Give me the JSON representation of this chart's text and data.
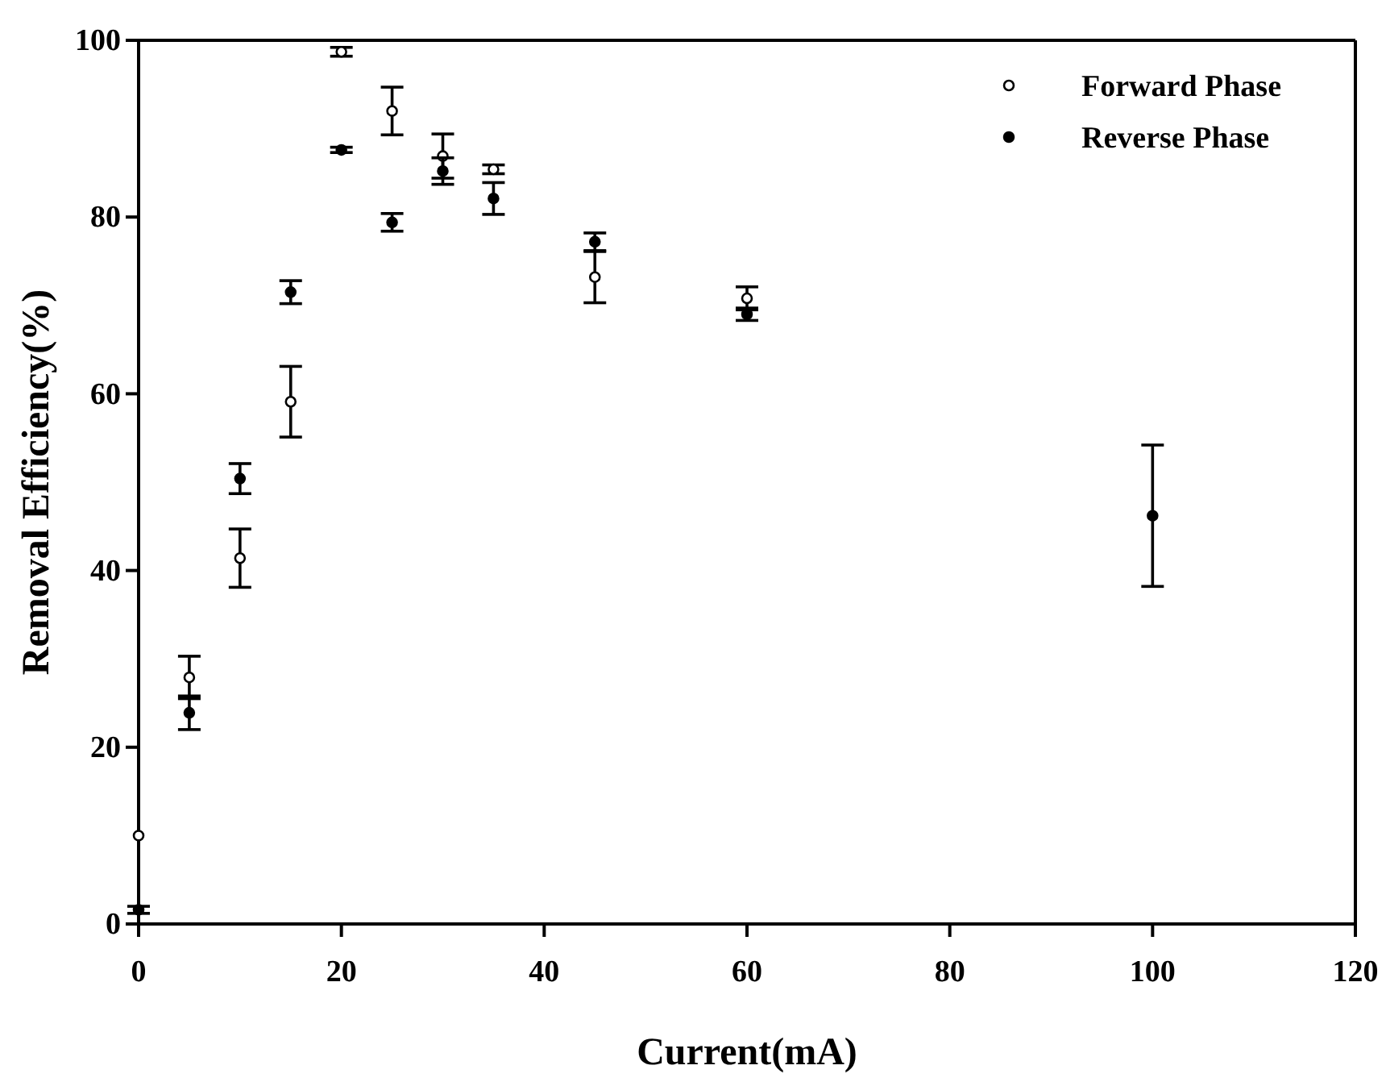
{
  "chart_data": {
    "type": "scatter",
    "xlabel": "Current(mA)",
    "ylabel": "Removal Efficiency(%)",
    "xlim": [
      0,
      120
    ],
    "xticks": [
      0,
      20,
      40,
      60,
      80,
      100,
      120
    ],
    "ylim": [
      0,
      100
    ],
    "yticks": [
      0,
      20,
      40,
      60,
      80,
      100
    ],
    "grid": false,
    "legend": "top right",
    "marker": "circle",
    "series": [
      {
        "name": "Forward Phase",
        "color": "#000000",
        "x": [
          0,
          5,
          10,
          15,
          20,
          25,
          30,
          35,
          45,
          60
        ],
        "values": [
          10,
          27.9,
          41.4,
          59.1,
          98.7,
          92,
          86.9,
          85.4,
          73.2,
          70.8
        ],
        "errors": [
          null,
          2.4,
          3.3,
          4,
          0.5,
          2.7,
          2.5,
          0.5,
          2.9,
          1.3
        ]
      },
      {
        "name": "Reverse Phase",
        "color": "#000000",
        "x": [
          0,
          5,
          10,
          15,
          20,
          25,
          30,
          35,
          45,
          60,
          100
        ],
        "values": [
          1.6,
          23.9,
          50.4,
          71.5,
          87.6,
          79.4,
          85.2,
          82.1,
          77.2,
          69,
          46.2
        ],
        "errors": [
          0.4,
          1.9,
          1.7,
          1.3,
          0.3,
          1,
          1.5,
          1.8,
          1,
          0.7,
          8
        ]
      }
    ]
  }
}
